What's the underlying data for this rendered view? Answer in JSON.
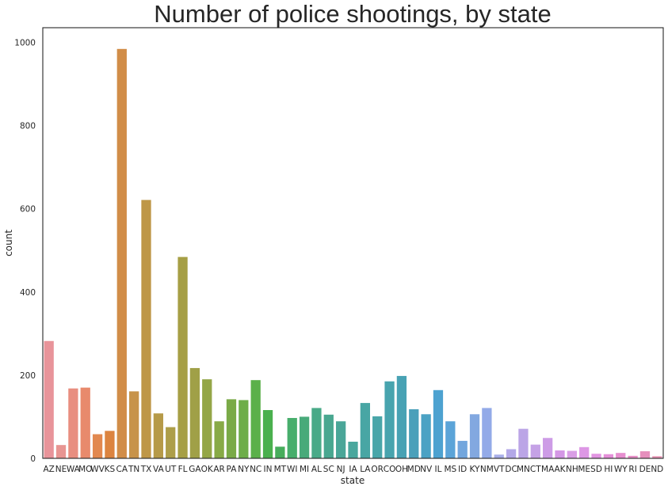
{
  "chart_data": {
    "type": "bar",
    "title": "Number of police shootings, by state",
    "xlabel": "state",
    "ylabel": "count",
    "ylim": [
      0,
      1035
    ],
    "yticks": [
      0,
      200,
      400,
      600,
      800,
      1000
    ],
    "grid": false,
    "categories": [
      "AZ",
      "NE",
      "WA",
      "MO",
      "WV",
      "KS",
      "CA",
      "TN",
      "TX",
      "VA",
      "UT",
      "FL",
      "GA",
      "OK",
      "AR",
      "PA",
      "NY",
      "NC",
      "IN",
      "MT",
      "WI",
      "MI",
      "AL",
      "SC",
      "NJ",
      "IA",
      "LA",
      "OR",
      "CO",
      "OH",
      "MD",
      "NV",
      "IL",
      "MS",
      "ID",
      "KY",
      "NM",
      "VT",
      "DC",
      "MN",
      "CT",
      "MA",
      "AK",
      "NH",
      "ME",
      "SD",
      "HI",
      "WY",
      "RI",
      "DE",
      "ND"
    ],
    "values": [
      282,
      32,
      168,
      170,
      58,
      66,
      984,
      161,
      621,
      108,
      75,
      484,
      217,
      190,
      89,
      142,
      140,
      188,
      116,
      28,
      97,
      100,
      121,
      105,
      89,
      40,
      133,
      101,
      185,
      198,
      118,
      106,
      164,
      89,
      42,
      106,
      121,
      9,
      22,
      71,
      33,
      49,
      19,
      18,
      27,
      11,
      10,
      13,
      6,
      17,
      5
    ],
    "colors": [
      "#e8949a",
      "#e89592",
      "#e88e80",
      "#e88a6c",
      "#e2884f",
      "#dc8440",
      "#d18d48",
      "#c7934a",
      "#be9747",
      "#b69a48",
      "#ad9e49",
      "#a69f45",
      "#a0a047",
      "#94a647",
      "#88aa46",
      "#7aaa47",
      "#6ead49",
      "#5bb04a",
      "#4ab04e",
      "#47ad5c",
      "#47ae6c",
      "#48aa7a",
      "#49aa88",
      "#49a790",
      "#4aa698",
      "#4aa79d",
      "#48a6a4",
      "#49a6a9",
      "#48a4ae",
      "#48a2b4",
      "#4aa0ba",
      "#4ba2c4",
      "#4da2d0",
      "#5ba4d8",
      "#72a6dd",
      "#82a8e0",
      "#93aae8",
      "#a8aee8",
      "#b3a8e7",
      "#bba5e6",
      "#c5a2e6",
      "#cd9ce6",
      "#d497e5",
      "#d99ee5",
      "#dd97e5",
      "#e295e2",
      "#e48fd8",
      "#e68ecf",
      "#e68ec6",
      "#e68fbd",
      "#e690b2"
    ]
  }
}
